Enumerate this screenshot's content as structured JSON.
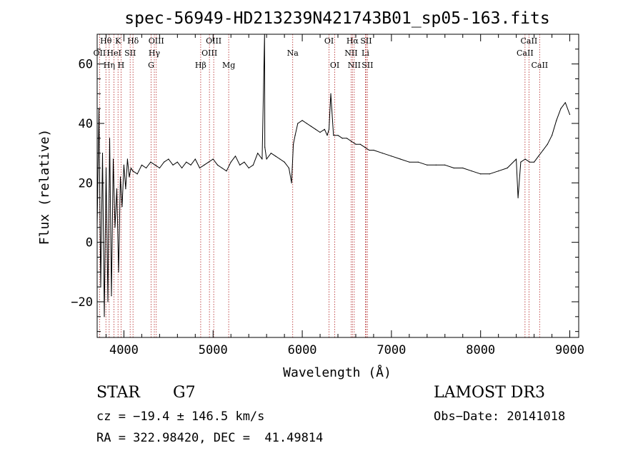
{
  "chart_data": {
    "type": "line",
    "title": "spec-56949-HD213239N421743B01_sp05-163.fits",
    "xlabel": "Wavelength (Å)",
    "ylabel": "Flux (relative)",
    "xlim": [
      3700,
      9100
    ],
    "ylim": [
      -32,
      70
    ],
    "x_ticks": [
      4000,
      5000,
      6000,
      7000,
      8000,
      9000
    ],
    "x_tick_labels": [
      "4000",
      "5000",
      "6000",
      "7000",
      "8000",
      "9000"
    ],
    "y_ticks": [
      -20,
      0,
      20,
      40,
      60
    ],
    "y_tick_labels": [
      "−20",
      "0",
      "20",
      "40",
      "60"
    ],
    "grid": false,
    "series": [
      {
        "x": [
          3700,
          3720,
          3740,
          3760,
          3780,
          3800,
          3820,
          3840,
          3860,
          3880,
          3900,
          3920,
          3940,
          3960,
          3980,
          4000,
          4020,
          4040,
          4060,
          4080,
          4100,
          4150,
          4200,
          4250,
          4300,
          4350,
          4400,
          4450,
          4500,
          4550,
          4600,
          4650,
          4700,
          4750,
          4800,
          4850,
          4900,
          4950,
          5000,
          5050,
          5100,
          5150,
          5200,
          5250,
          5300,
          5350,
          5400,
          5450,
          5500,
          5550,
          5577,
          5580,
          5600,
          5650,
          5700,
          5750,
          5800,
          5850,
          5880,
          5900,
          5920,
          5950,
          6000,
          6050,
          6100,
          6150,
          6200,
          6250,
          6280,
          6300,
          6320,
          6350,
          6400,
          6450,
          6500,
          6550,
          6600,
          6650,
          6700,
          6750,
          6800,
          6900,
          7000,
          7100,
          7200,
          7300,
          7400,
          7500,
          7600,
          7700,
          7800,
          7900,
          8000,
          8100,
          8200,
          8300,
          8400,
          8420,
          8450,
          8500,
          8550,
          8600,
          8650,
          8700,
          8750,
          8800,
          8850,
          8900,
          8950,
          9000
        ],
        "y": [
          5,
          45,
          -15,
          30,
          -25,
          25,
          -20,
          35,
          -18,
          28,
          5,
          18,
          -10,
          22,
          12,
          26,
          18,
          28,
          22,
          25,
          24,
          23,
          26,
          25,
          27,
          26,
          25,
          27,
          28,
          26,
          27,
          25,
          27,
          26,
          28,
          25,
          26,
          27,
          28,
          26,
          25,
          24,
          27,
          29,
          26,
          27,
          25,
          26,
          30,
          28,
          70,
          32,
          28,
          30,
          29,
          28,
          27,
          25,
          20,
          33,
          36,
          40,
          41,
          40,
          39,
          38,
          37,
          38,
          36,
          38,
          50,
          36,
          36,
          35,
          35,
          34,
          33,
          33,
          32,
          31,
          31,
          30,
          29,
          28,
          27,
          27,
          26,
          26,
          26,
          25,
          25,
          24,
          23,
          23,
          24,
          25,
          28,
          15,
          27,
          28,
          27,
          27,
          29,
          31,
          33,
          36,
          41,
          45,
          47,
          43
        ]
      }
    ],
    "spectral_lines": [
      {
        "label": "Hθ",
        "wavelength": 3798,
        "row": 1
      },
      {
        "label": "OII",
        "wavelength": 3727,
        "row": 2
      },
      {
        "label": "Hη",
        "wavelength": 3835,
        "row": 3
      },
      {
        "label": "HeI",
        "wavelength": 3889,
        "row": 2
      },
      {
        "label": "K",
        "wavelength": 3934,
        "row": 1
      },
      {
        "label": "H",
        "wavelength": 3968,
        "row": 3
      },
      {
        "label": "SII",
        "wavelength": 4070,
        "row": 2
      },
      {
        "label": "Hδ",
        "wavelength": 4102,
        "row": 1
      },
      {
        "label": "OIII",
        "wavelength": 4363,
        "row": 1
      },
      {
        "label": "Hγ",
        "wavelength": 4341,
        "row": 2
      },
      {
        "label": "G",
        "wavelength": 4305,
        "row": 3
      },
      {
        "label": "Hβ",
        "wavelength": 4861,
        "row": 3
      },
      {
        "label": "OIII",
        "wavelength": 5007,
        "row": 1
      },
      {
        "label": "OIII",
        "wavelength": 4959,
        "row": 2
      },
      {
        "label": "Mg",
        "wavelength": 5175,
        "row": 3
      },
      {
        "label": "Na",
        "wavelength": 5893,
        "row": 2
      },
      {
        "label": "OI",
        "wavelength": 6300,
        "row": 1
      },
      {
        "label": "OI",
        "wavelength": 6364,
        "row": 3
      },
      {
        "label": "Hα",
        "wavelength": 6563,
        "row": 1
      },
      {
        "label": "NII",
        "wavelength": 6548,
        "row": 2
      },
      {
        "label": "NII",
        "wavelength": 6583,
        "row": 3
      },
      {
        "label": "SII",
        "wavelength": 6716,
        "row": 1
      },
      {
        "label": "Li",
        "wavelength": 6708,
        "row": 2
      },
      {
        "label": "SII",
        "wavelength": 6731,
        "row": 3
      },
      {
        "label": "CaII",
        "wavelength": 8542,
        "row": 1
      },
      {
        "label": "CaII",
        "wavelength": 8498,
        "row": 2
      },
      {
        "label": "CaII",
        "wavelength": 8662,
        "row": 3
      }
    ]
  },
  "info": {
    "object_class": "STAR",
    "subclass": "G7",
    "survey": "LAMOST DR3",
    "velocity": "cz = −19.4 ± 146.5 km/s",
    "obs_date": "Obs−Date: 20141018",
    "coords": "RA = 322.98420, DEC =  41.49814"
  }
}
